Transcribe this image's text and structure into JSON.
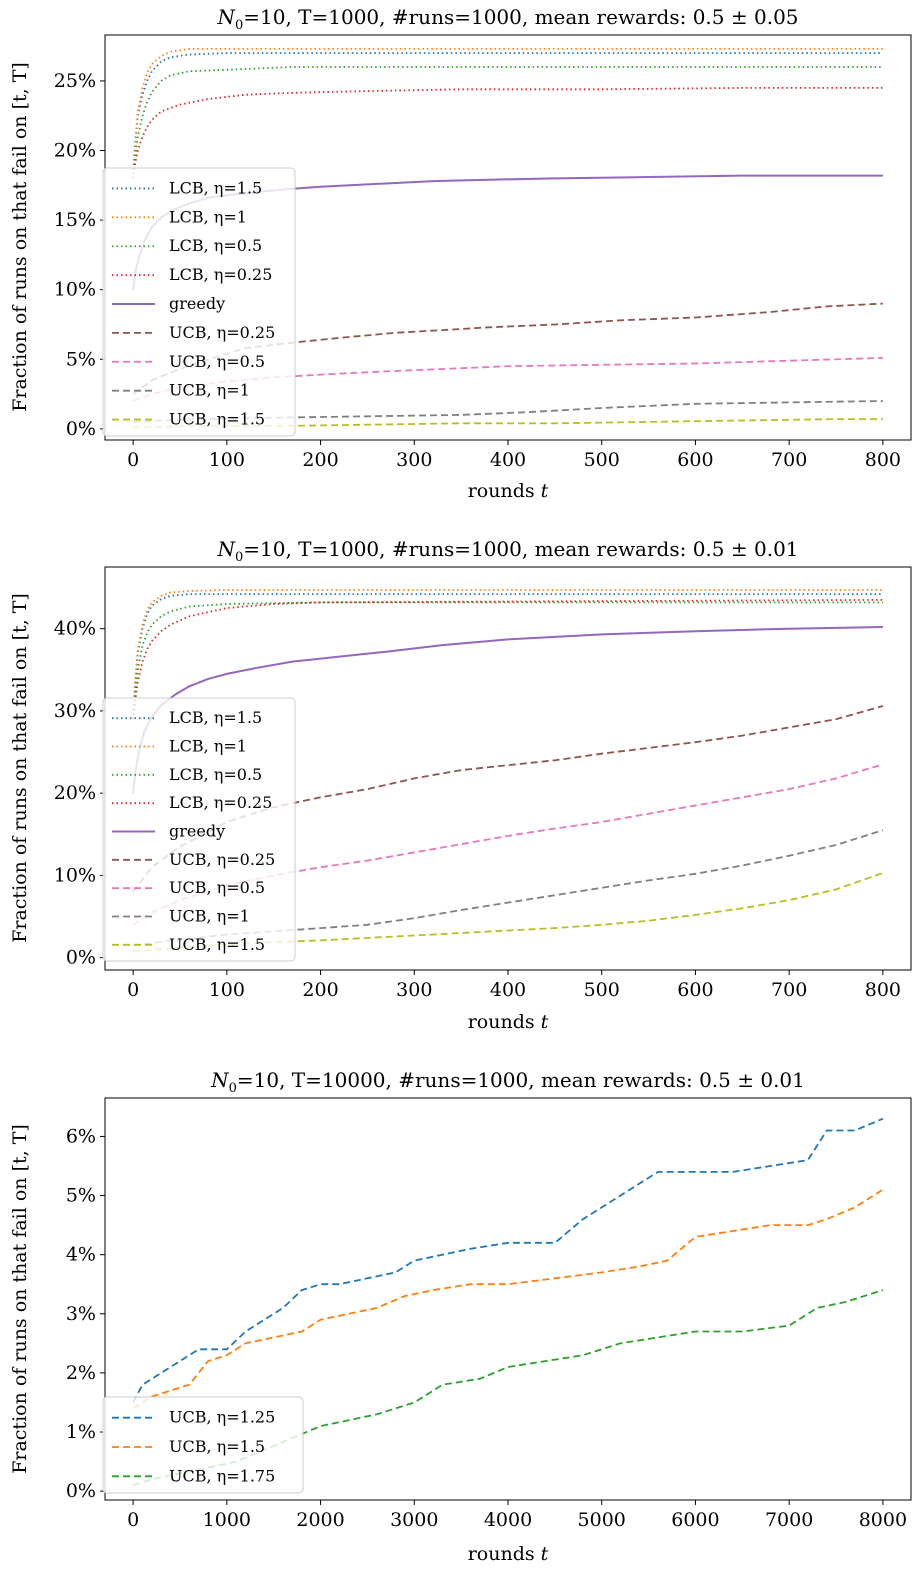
{
  "chart_data": [
    {
      "type": "line",
      "title": "N0=10, T=1000, #runs=1000, mean rewards: 0.5 ± 0.05",
      "title_parts": {
        "prefix": "N",
        "sub": "0",
        "rest": "=10, T=1000, #runs=1000, mean rewards: 0.5 ± 0.05"
      },
      "xlabel": "rounds t",
      "ylabel": "Fraction of runs on that fail on [t, T]",
      "xlim": [
        -30,
        830
      ],
      "ylim": [
        -0.008,
        0.283
      ],
      "xticks": [
        0,
        100,
        200,
        300,
        400,
        500,
        600,
        700,
        800
      ],
      "xtick_labels": [
        "0",
        "100",
        "200",
        "300",
        "400",
        "500",
        "600",
        "700",
        "800"
      ],
      "yticks": [
        0,
        0.05,
        0.1,
        0.15,
        0.2,
        0.25
      ],
      "ytick_labels": [
        "0%",
        "5%",
        "10%",
        "15%",
        "20%",
        "25%"
      ],
      "grid": false,
      "legend_position": "center-left",
      "series": [
        {
          "name": "LCB, η=1.5",
          "color": "#1f77b4",
          "dash": "dotted",
          "x": [
            0,
            2,
            5,
            10,
            15,
            20,
            30,
            40,
            60,
            100,
            200,
            800
          ],
          "y": [
            0.18,
            0.205,
            0.225,
            0.24,
            0.25,
            0.257,
            0.264,
            0.267,
            0.269,
            0.27,
            0.27,
            0.27
          ]
        },
        {
          "name": "LCB, η=1",
          "color": "#ff7f0e",
          "dash": "dotted",
          "x": [
            0,
            2,
            5,
            10,
            15,
            20,
            30,
            40,
            60,
            100,
            200,
            800
          ],
          "y": [
            0.18,
            0.205,
            0.228,
            0.245,
            0.256,
            0.262,
            0.268,
            0.271,
            0.273,
            0.273,
            0.273,
            0.273
          ]
        },
        {
          "name": "LCB, η=0.5",
          "color": "#2ca02c",
          "dash": "dotted",
          "x": [
            0,
            2,
            5,
            10,
            15,
            20,
            30,
            40,
            60,
            100,
            170,
            300,
            800
          ],
          "y": [
            0.18,
            0.195,
            0.21,
            0.225,
            0.235,
            0.242,
            0.25,
            0.254,
            0.257,
            0.258,
            0.26,
            0.26,
            0.26
          ]
        },
        {
          "name": "LCB, η=0.25",
          "color": "#d62728",
          "dash": "dotted",
          "x": [
            0,
            2,
            5,
            10,
            15,
            20,
            30,
            50,
            80,
            120,
            150,
            200,
            270,
            350,
            500,
            650,
            800
          ],
          "y": [
            0.18,
            0.19,
            0.2,
            0.21,
            0.217,
            0.222,
            0.228,
            0.233,
            0.237,
            0.24,
            0.241,
            0.242,
            0.243,
            0.244,
            0.244,
            0.245,
            0.245
          ]
        },
        {
          "name": "greedy",
          "color": "#9467bd",
          "dash": "solid",
          "x": [
            0,
            3,
            7,
            12,
            20,
            30,
            45,
            60,
            80,
            100,
            130,
            160,
            200,
            260,
            320,
            380,
            450,
            550,
            650,
            800
          ],
          "y": [
            0.1,
            0.115,
            0.125,
            0.135,
            0.145,
            0.152,
            0.158,
            0.162,
            0.166,
            0.168,
            0.17,
            0.172,
            0.174,
            0.176,
            0.178,
            0.179,
            0.18,
            0.181,
            0.182,
            0.182
          ]
        },
        {
          "name": "UCB, η=0.25",
          "color": "#8c564b",
          "dash": "dashed",
          "x": [
            0,
            20,
            50,
            80,
            120,
            170,
            230,
            280,
            330,
            380,
            450,
            520,
            600,
            680,
            740,
            800
          ],
          "y": [
            0.025,
            0.035,
            0.043,
            0.05,
            0.058,
            0.062,
            0.066,
            0.069,
            0.071,
            0.073,
            0.075,
            0.078,
            0.08,
            0.084,
            0.088,
            0.09
          ]
        },
        {
          "name": "UCB, η=0.5",
          "color": "#e377c2",
          "dash": "dashed",
          "x": [
            0,
            20,
            50,
            100,
            150,
            200,
            260,
            330,
            400,
            500,
            600,
            700,
            800
          ],
          "y": [
            0.02,
            0.025,
            0.03,
            0.034,
            0.037,
            0.039,
            0.041,
            0.043,
            0.045,
            0.046,
            0.047,
            0.049,
            0.051
          ]
        },
        {
          "name": "UCB, η=1",
          "color": "#7f7f7f",
          "dash": "dashed",
          "x": [
            0,
            30,
            80,
            150,
            250,
            350,
            420,
            500,
            600,
            700,
            800
          ],
          "y": [
            0.005,
            0.006,
            0.007,
            0.008,
            0.009,
            0.01,
            0.012,
            0.015,
            0.018,
            0.019,
            0.02
          ]
        },
        {
          "name": "UCB, η=1.5",
          "color": "#bcbd22",
          "dash": "dashed",
          "x": [
            0,
            50,
            150,
            250,
            350,
            450,
            550,
            650,
            750,
            800
          ],
          "y": [
            0.001,
            0.002,
            0.002,
            0.003,
            0.004,
            0.004,
            0.005,
            0.006,
            0.007,
            0.007
          ]
        }
      ]
    },
    {
      "type": "line",
      "title": "N0=10, T=1000, #runs=1000, mean rewards: 0.5 ± 0.01",
      "title_parts": {
        "prefix": "N",
        "sub": "0",
        "rest": "=10, T=1000, #runs=1000, mean rewards: 0.5 ± 0.01"
      },
      "xlabel": "rounds t",
      "ylabel": "Fraction of runs on that fail on [t, T]",
      "xlim": [
        -30,
        830
      ],
      "ylim": [
        -0.015,
        0.475
      ],
      "xticks": [
        0,
        100,
        200,
        300,
        400,
        500,
        600,
        700,
        800
      ],
      "xtick_labels": [
        "0",
        "100",
        "200",
        "300",
        "400",
        "500",
        "600",
        "700",
        "800"
      ],
      "yticks": [
        0,
        0.1,
        0.2,
        0.3,
        0.4
      ],
      "ytick_labels": [
        "0%",
        "10%",
        "20%",
        "30%",
        "40%"
      ],
      "grid": false,
      "legend_position": "lower-left",
      "series": [
        {
          "name": "LCB, η=1.5",
          "color": "#1f77b4",
          "dash": "dotted",
          "x": [
            0,
            2,
            5,
            10,
            15,
            20,
            30,
            40,
            60,
            100,
            800
          ],
          "y": [
            0.29,
            0.33,
            0.37,
            0.4,
            0.418,
            0.428,
            0.436,
            0.44,
            0.442,
            0.442,
            0.442
          ]
        },
        {
          "name": "LCB, η=1",
          "color": "#ff7f0e",
          "dash": "dotted",
          "x": [
            0,
            2,
            5,
            10,
            15,
            20,
            30,
            40,
            60,
            100,
            800
          ],
          "y": [
            0.29,
            0.335,
            0.375,
            0.405,
            0.423,
            0.432,
            0.44,
            0.444,
            0.446,
            0.447,
            0.447
          ]
        },
        {
          "name": "LCB, η=0.5",
          "color": "#2ca02c",
          "dash": "dotted",
          "x": [
            0,
            2,
            5,
            10,
            15,
            20,
            30,
            40,
            60,
            100,
            200,
            800
          ],
          "y": [
            0.29,
            0.32,
            0.35,
            0.38,
            0.395,
            0.405,
            0.415,
            0.421,
            0.427,
            0.43,
            0.432,
            0.432
          ]
        },
        {
          "name": "LCB, η=0.25",
          "color": "#d62728",
          "dash": "dotted",
          "x": [
            0,
            2,
            5,
            10,
            15,
            20,
            30,
            40,
            60,
            100,
            150,
            200,
            800
          ],
          "y": [
            0.29,
            0.31,
            0.335,
            0.36,
            0.375,
            0.385,
            0.397,
            0.405,
            0.415,
            0.425,
            0.43,
            0.432,
            0.435
          ]
        },
        {
          "name": "greedy",
          "color": "#9467bd",
          "dash": "solid",
          "x": [
            0,
            3,
            7,
            12,
            20,
            30,
            45,
            60,
            80,
            100,
            130,
            170,
            220,
            270,
            330,
            400,
            500,
            600,
            700,
            800
          ],
          "y": [
            0.2,
            0.23,
            0.255,
            0.275,
            0.293,
            0.307,
            0.32,
            0.33,
            0.339,
            0.345,
            0.352,
            0.36,
            0.366,
            0.372,
            0.38,
            0.387,
            0.393,
            0.397,
            0.4,
            0.402
          ]
        },
        {
          "name": "UCB, η=0.25",
          "color": "#8c564b",
          "dash": "dashed",
          "x": [
            0,
            20,
            50,
            100,
            150,
            200,
            250,
            300,
            350,
            400,
            450,
            500,
            550,
            600,
            650,
            700,
            750,
            800
          ],
          "y": [
            0.08,
            0.11,
            0.135,
            0.165,
            0.183,
            0.195,
            0.205,
            0.218,
            0.228,
            0.234,
            0.24,
            0.248,
            0.255,
            0.262,
            0.27,
            0.28,
            0.29,
            0.306
          ]
        },
        {
          "name": "UCB, η=0.5",
          "color": "#e377c2",
          "dash": "dashed",
          "x": [
            0,
            20,
            50,
            100,
            150,
            200,
            250,
            300,
            350,
            400,
            450,
            500,
            550,
            600,
            650,
            700,
            750,
            800
          ],
          "y": [
            0.04,
            0.055,
            0.07,
            0.088,
            0.1,
            0.11,
            0.118,
            0.128,
            0.138,
            0.148,
            0.157,
            0.165,
            0.175,
            0.185,
            0.195,
            0.205,
            0.218,
            0.235
          ]
        },
        {
          "name": "UCB, η=1",
          "color": "#7f7f7f",
          "dash": "dashed",
          "x": [
            0,
            50,
            100,
            150,
            200,
            250,
            300,
            350,
            400,
            450,
            500,
            550,
            600,
            650,
            700,
            750,
            800
          ],
          "y": [
            0.015,
            0.022,
            0.028,
            0.032,
            0.036,
            0.04,
            0.048,
            0.058,
            0.067,
            0.076,
            0.085,
            0.094,
            0.102,
            0.112,
            0.124,
            0.137,
            0.155
          ]
        },
        {
          "name": "UCB, η=1.5",
          "color": "#bcbd22",
          "dash": "dashed",
          "x": [
            0,
            50,
            100,
            150,
            200,
            250,
            300,
            350,
            400,
            450,
            500,
            550,
            600,
            650,
            700,
            750,
            800
          ],
          "y": [
            0.008,
            0.012,
            0.016,
            0.019,
            0.021,
            0.024,
            0.027,
            0.03,
            0.033,
            0.036,
            0.04,
            0.045,
            0.052,
            0.06,
            0.07,
            0.083,
            0.103
          ]
        }
      ]
    },
    {
      "type": "line",
      "title": "N0=10, T=10000, #runs=1000, mean rewards: 0.5 ± 0.01",
      "title_parts": {
        "prefix": "N",
        "sub": "0",
        "rest": "=10, T=10000, #runs=1000, mean rewards: 0.5 ± 0.01"
      },
      "xlabel": "rounds t",
      "ylabel": "Fraction of runs on that fail on [t, T]",
      "xlim": [
        -300,
        8300
      ],
      "ylim": [
        -0.0015,
        0.0665
      ],
      "xticks": [
        0,
        1000,
        2000,
        3000,
        4000,
        5000,
        6000,
        7000,
        8000
      ],
      "xtick_labels": [
        "0",
        "1000",
        "2000",
        "3000",
        "4000",
        "5000",
        "6000",
        "7000",
        "8000"
      ],
      "yticks": [
        0,
        0.01,
        0.02,
        0.03,
        0.04,
        0.05,
        0.06
      ],
      "ytick_labels": [
        "0%",
        "1%",
        "2%",
        "3%",
        "4%",
        "5%",
        "6%"
      ],
      "grid": false,
      "legend_position": "lower-left",
      "series": [
        {
          "name": "UCB, η=1.25",
          "color": "#1f77b4",
          "dash": "dashed",
          "x": [
            0,
            100,
            200,
            300,
            500,
            700,
            1000,
            1200,
            1400,
            1600,
            1800,
            2000,
            2200,
            2500,
            2800,
            3000,
            3300,
            3600,
            4000,
            4500,
            4800,
            5000,
            5300,
            5600,
            6000,
            6400,
            6800,
            7200,
            7400,
            7700,
            8000
          ],
          "y": [
            0.015,
            0.018,
            0.019,
            0.02,
            0.022,
            0.024,
            0.024,
            0.027,
            0.029,
            0.031,
            0.034,
            0.035,
            0.035,
            0.036,
            0.037,
            0.039,
            0.04,
            0.041,
            0.042,
            0.042,
            0.046,
            0.048,
            0.051,
            0.054,
            0.054,
            0.054,
            0.055,
            0.056,
            0.061,
            0.061,
            0.063
          ]
        },
        {
          "name": "UCB, η=1.5",
          "color": "#ff7f0e",
          "dash": "dashed",
          "x": [
            0,
            100,
            200,
            400,
            600,
            800,
            1000,
            1200,
            1500,
            1800,
            2000,
            2300,
            2600,
            2900,
            3200,
            3600,
            4000,
            4500,
            5000,
            5400,
            5700,
            6000,
            6400,
            6800,
            7200,
            7400,
            7700,
            8000
          ],
          "y": [
            0.014,
            0.015,
            0.016,
            0.017,
            0.018,
            0.022,
            0.023,
            0.025,
            0.026,
            0.027,
            0.029,
            0.03,
            0.031,
            0.033,
            0.034,
            0.035,
            0.035,
            0.036,
            0.037,
            0.038,
            0.039,
            0.043,
            0.044,
            0.045,
            0.045,
            0.046,
            0.048,
            0.051
          ]
        },
        {
          "name": "UCB, η=1.75",
          "color": "#2ca02c",
          "dash": "dashed",
          "x": [
            0,
            200,
            500,
            800,
            1100,
            1400,
            1700,
            2000,
            2300,
            2600,
            3000,
            3300,
            3700,
            4000,
            4400,
            4800,
            5200,
            5600,
            6000,
            6500,
            7000,
            7300,
            7600,
            8000
          ],
          "y": [
            0.001,
            0.002,
            0.003,
            0.004,
            0.005,
            0.007,
            0.009,
            0.011,
            0.012,
            0.013,
            0.015,
            0.018,
            0.019,
            0.021,
            0.022,
            0.023,
            0.025,
            0.026,
            0.027,
            0.027,
            0.028,
            0.031,
            0.032,
            0.034
          ]
        }
      ]
    }
  ]
}
